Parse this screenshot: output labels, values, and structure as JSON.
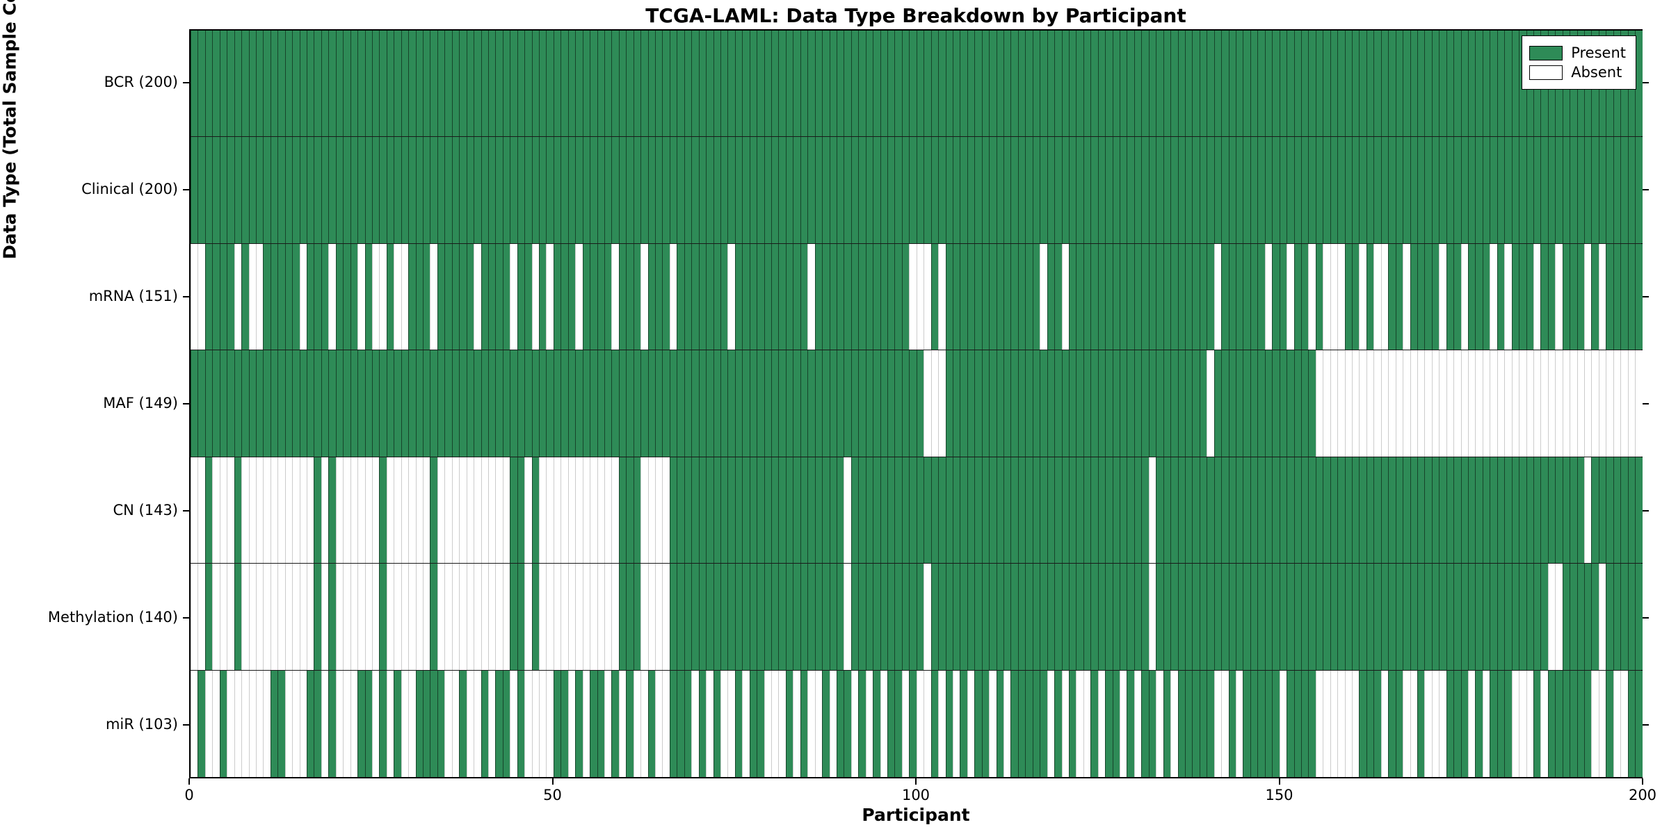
{
  "title": "TCGA-LAML: Data Type Breakdown by Participant",
  "legend": {
    "present_label": "Present",
    "absent_label": "Absent"
  },
  "colors": {
    "present": "#2e8b57",
    "absent": "#ffffff",
    "present_edge": "rgba(0,0,0,0.5)",
    "absent_edge": "rgba(0,0,0,0.2)"
  },
  "chart_data": {
    "type": "heatmap",
    "title": "TCGA-LAML: Data Type Breakdown by Participant",
    "xlabel": "Participant",
    "ylabel": "Data Type (Total Sample Count)",
    "xlim": [
      0,
      200
    ],
    "n_participants": 200,
    "x_tick_labels": [
      "0",
      "50",
      "100",
      "150",
      "200"
    ],
    "x_tick_values": [
      0,
      50,
      100,
      150,
      200
    ],
    "grid": "row-separators",
    "legend_position": "upper right",
    "legend_entries": [
      "Present",
      "Absent"
    ],
    "rows": [
      {
        "label": "BCR (200)",
        "name": "BCR",
        "present_count": 200,
        "presence": "11111111111111111111111111111111111111111111111111111111111111111111111111111111111111111111111111111111111111111111111111111111111111111111111111111111111111111111111111111111111111111111111111111111"
      },
      {
        "label": "Clinical (200)",
        "name": "Clinical",
        "present_count": 200,
        "presence": "11111111111111111111111111111111111111111111111111111111111111111111111111111111111111111111111111111111111111111111111111111111111111111111111111111111111111111111111111111111111111111111111111111111"
      },
      {
        "label": "mRNA (151)",
        "name": "mRNA",
        "present_count": 151,
        "presence": "00111101001111101110111010010011101111101111011010111011110111011101111111011111111110111111111111100010111111111111101101111111111111111111101111110110110100011010011011110110111010111011011101011111"
      },
      {
        "label": "MAF (149)",
        "name": "MAF",
        "present_count": 149,
        "presence": "11111111111111111111111111111111111111111111111111111111111111111111111111111111111111111111111111111000111111111111111111111111111111111111011111111111111000000000000000000000000000000000000000000000"
      },
      {
        "label": "CN (143)",
        "name": "CN",
        "present_count": 143,
        "presence": "00100010000000000101000000100000010000000000110100000000000111000011111111111111111111111101111111111111111111111111111111111111111101111111111111111111111111111111111111111111111111111111111101111111"
      },
      {
        "label": "Methylation (140)",
        "name": "Methylation",
        "present_count": 140,
        "presence": "00100010000000000101000000100000010000000000110100000000000111000011111111111111111111111101111111111011111111111111111111111111111101111111111111111111111111111111111111111111111111111110011111011111"
      },
      {
        "label": "miR (103)",
        "name": "miR",
        "present_count": 103,
        "presence": "01001000000110001101000110101001111001001011010000110101101010010011101010010110001010010110101011010010101011010111110101001011010110101111100101111101111000000111011001000111010111000101111110010011"
      }
    ]
  }
}
